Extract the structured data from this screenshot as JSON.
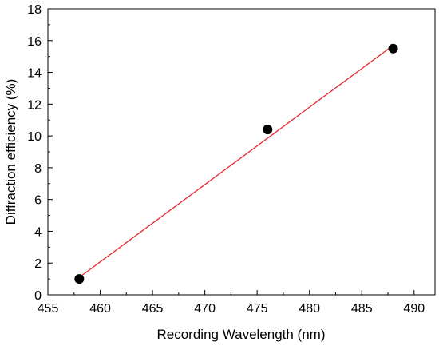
{
  "chart_data": {
    "type": "scatter",
    "xlabel": "Recording Wavelength  (nm)",
    "ylabel": "Diffraction efficiency (%)",
    "xlim": [
      455,
      492
    ],
    "ylim": [
      0,
      18
    ],
    "xticks": [
      455,
      460,
      465,
      470,
      475,
      480,
      485,
      490
    ],
    "yticks": [
      0,
      2,
      4,
      6,
      8,
      10,
      12,
      14,
      16,
      18
    ],
    "grid": false,
    "series": [
      {
        "x": [
          458,
          476,
          488
        ],
        "y": [
          1.0,
          10.4,
          15.5
        ],
        "marker": "circle",
        "color": "#000000"
      }
    ],
    "fit_line": {
      "x": [
        458,
        488
      ],
      "y": [
        1.1,
        15.7
      ],
      "color": "#e8262c"
    }
  }
}
